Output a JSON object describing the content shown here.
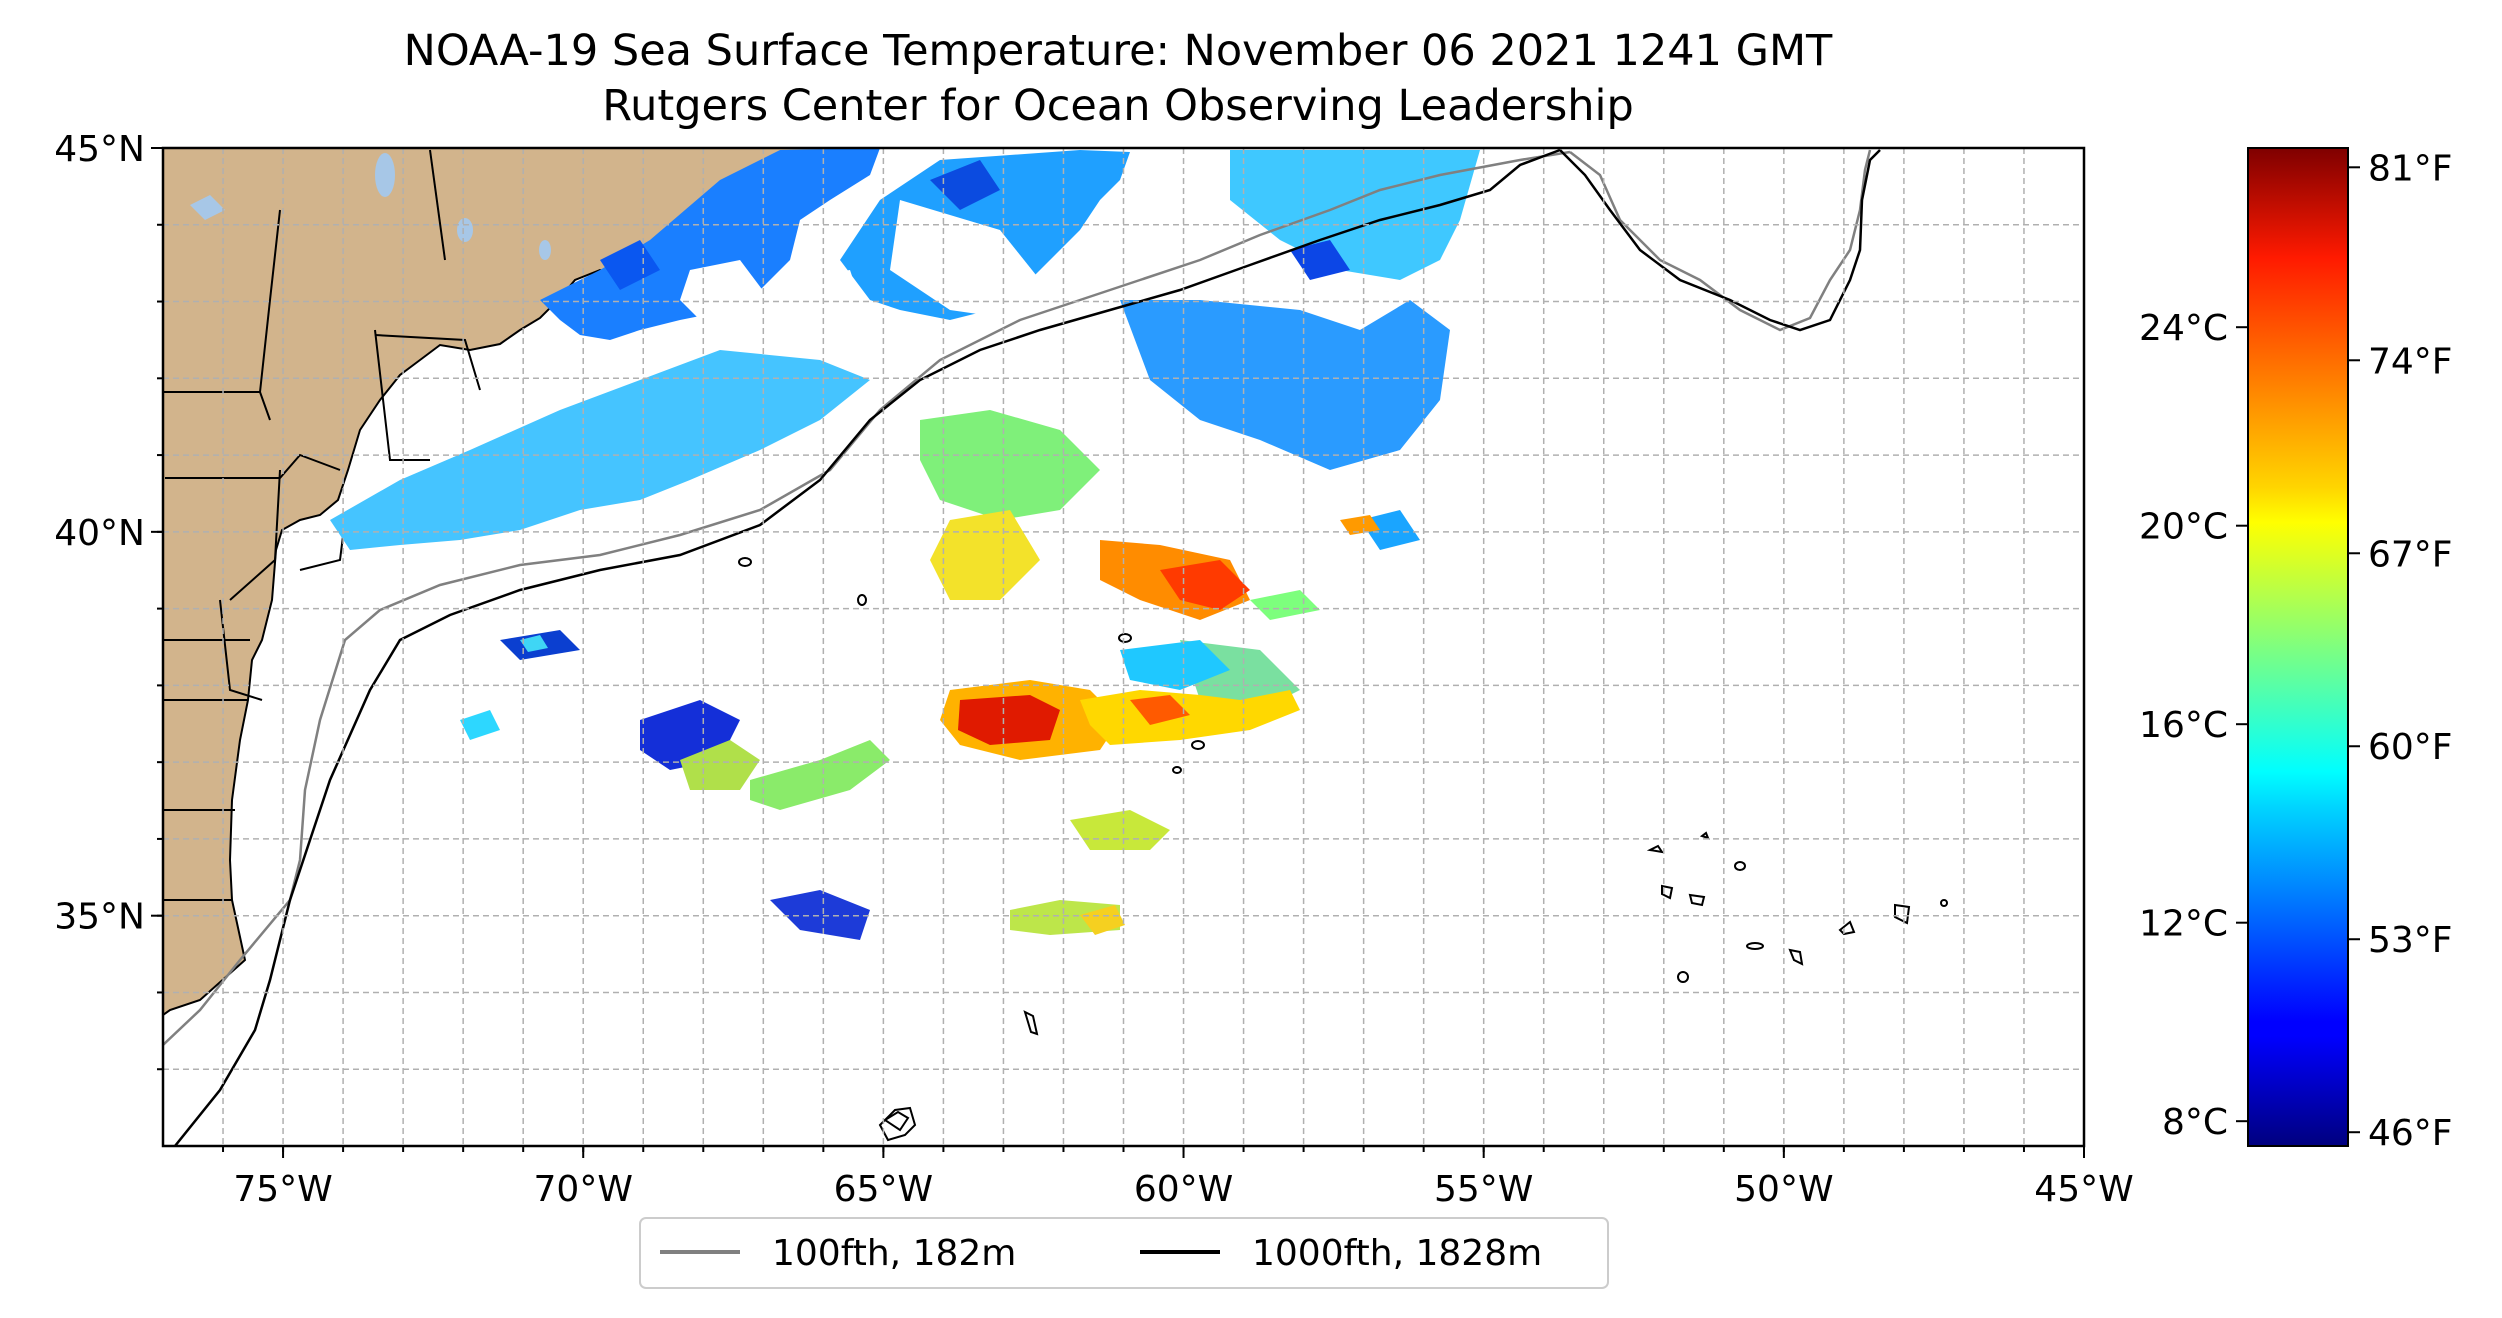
{
  "title": {
    "line1": "NOAA-19 Sea Surface Temperature: November 06 2021 1241 GMT",
    "line2": "Rutgers Center for Ocean Observing Leadership"
  },
  "map": {
    "lon_range": [
      -77,
      -45
    ],
    "lat_range": [
      32,
      45
    ],
    "lat_ticks": [
      {
        "value": 45,
        "label": "45°N"
      },
      {
        "value": 40,
        "label": "40°N"
      },
      {
        "value": 35,
        "label": "35°N"
      }
    ],
    "lon_ticks": [
      {
        "value": -75,
        "label": "75°W"
      },
      {
        "value": -70,
        "label": "70°W"
      },
      {
        "value": -65,
        "label": "65°W"
      },
      {
        "value": -60,
        "label": "60°W"
      },
      {
        "value": -55,
        "label": "55°W"
      },
      {
        "value": -50,
        "label": "50°W"
      },
      {
        "value": -45,
        "label": "45°W"
      }
    ],
    "gridlines": "dashed, 1° spacing",
    "land_color": "#d2b48c",
    "lake_color": "#a7c7e7"
  },
  "colorbar": {
    "colormap": "jet",
    "celsius_ticks": [
      {
        "value": 24,
        "label": "24°C"
      },
      {
        "value": 20,
        "label": "20°C"
      },
      {
        "value": 16,
        "label": "16°C"
      },
      {
        "value": 12,
        "label": "12°C"
      },
      {
        "value": 8,
        "label": "8°C"
      }
    ],
    "fahrenheit_ticks": [
      {
        "value": 81,
        "label": "81°F"
      },
      {
        "value": 74,
        "label": "74°F"
      },
      {
        "value": 67,
        "label": "67°F"
      },
      {
        "value": 60,
        "label": "60°F"
      },
      {
        "value": 53,
        "label": "53°F"
      },
      {
        "value": 46,
        "label": "46°F"
      }
    ]
  },
  "legend": {
    "items": [
      {
        "label": "100fth, 182m",
        "color": "#808080"
      },
      {
        "label": "1000fth, 1828m",
        "color": "#000000"
      }
    ]
  }
}
